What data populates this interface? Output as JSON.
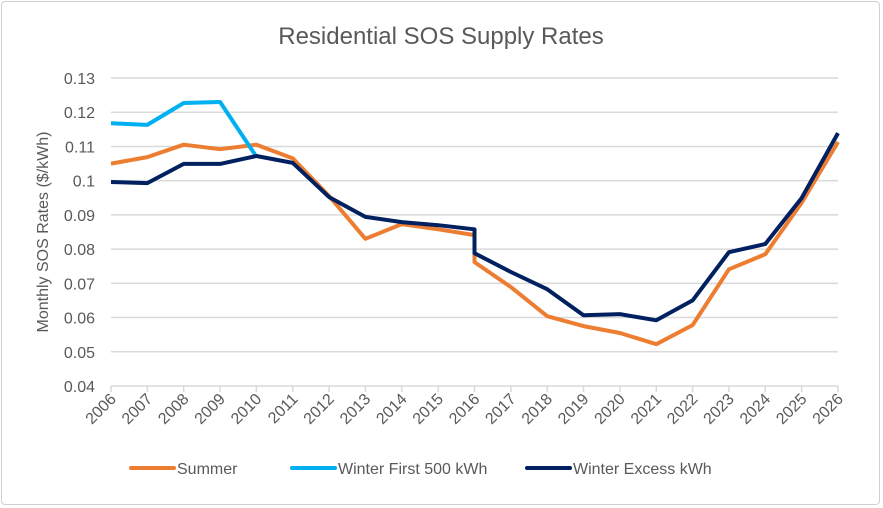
{
  "chart_data": {
    "type": "line",
    "title": "Residential SOS Supply Rates",
    "xlabel": "",
    "ylabel": "Monthly SOS Rates ($/kWh)",
    "ylim": [
      0.04,
      0.13
    ],
    "yticks": [
      "0.04",
      "0.05",
      "0.06",
      "0.07",
      "0.08",
      "0.09",
      "0.1",
      "0.11",
      "0.12",
      "0.13"
    ],
    "xticks": [
      "2006",
      "2007",
      "2008",
      "2009",
      "2010",
      "2011",
      "2012",
      "2013",
      "2014",
      "2015",
      "2016",
      "2017",
      "2018",
      "2019",
      "2020",
      "2021",
      "2022",
      "2023",
      "2024",
      "2025",
      "2026"
    ],
    "grid": true,
    "legend": "bottom",
    "series": [
      {
        "name": "Summer",
        "color": "#ED7D31",
        "x": [
          2006,
          2007,
          2008,
          2009,
          2010,
          2011,
          2012,
          2013,
          2014,
          2015,
          2016,
          2016,
          2017,
          2018,
          2019,
          2020,
          2021,
          2022,
          2023,
          2024,
          2025,
          2026
        ],
        "y": [
          0.105,
          0.1069,
          0.1105,
          0.1092,
          0.1105,
          0.1065,
          0.0955,
          0.083,
          0.0873,
          0.0858,
          0.0841,
          0.0762,
          0.0689,
          0.0604,
          0.0575,
          0.0555,
          0.0522,
          0.0578,
          0.0741,
          0.0785,
          0.0935,
          0.1113
        ]
      },
      {
        "name": "Winter First 500 kWh",
        "color": "#00B0F0",
        "x": [
          2006,
          2007,
          2008,
          2009,
          2010
        ],
        "y": [
          0.1168,
          0.1163,
          0.1227,
          0.123,
          0.107
        ]
      },
      {
        "name": "Winter Excess kWh",
        "color": "#002060",
        "x": [
          2006,
          2007,
          2008,
          2009,
          2010,
          2011,
          2012,
          2013,
          2014,
          2015,
          2016,
          2016,
          2017,
          2018,
          2019,
          2020,
          2021,
          2022,
          2023,
          2024,
          2025,
          2026
        ],
        "y": [
          0.0996,
          0.0993,
          0.1049,
          0.1049,
          0.1072,
          0.1052,
          0.0952,
          0.0894,
          0.0879,
          0.087,
          0.0858,
          0.0788,
          0.0733,
          0.0683,
          0.0607,
          0.061,
          0.0592,
          0.065,
          0.0791,
          0.0815,
          0.0949,
          0.1139
        ]
      }
    ]
  }
}
